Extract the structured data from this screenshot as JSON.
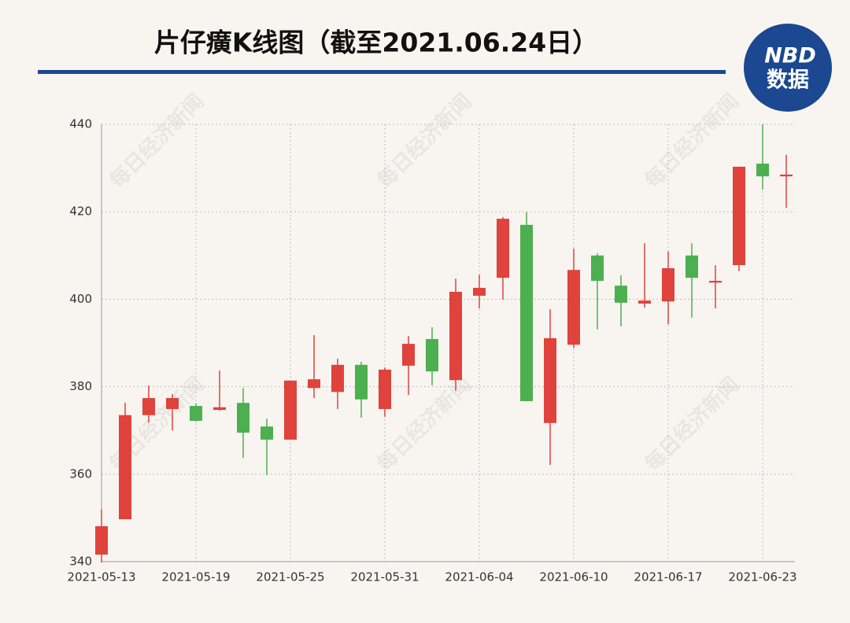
{
  "chart_data": {
    "type": "candlestick",
    "title": "片仔癀K线图（截至2021.06.24日）",
    "logo": {
      "top": "NBD",
      "bottom": "数据"
    },
    "watermark": "每日经济新闻",
    "categories": [
      "2021-05-13",
      null,
      null,
      null,
      "2021-05-19",
      null,
      null,
      null,
      "2021-05-25",
      null,
      null,
      null,
      "2021-05-31",
      null,
      null,
      null,
      "2021-06-04",
      null,
      null,
      null,
      "2021-06-10",
      null,
      null,
      null,
      "2021-06-17",
      null,
      null,
      null,
      "2021-06-23",
      null
    ],
    "series": [
      {
        "up_color": "#e0423c",
        "down_color": "#4caf50",
        "open": [
          341.6,
          349.7,
          373.5,
          374.9,
          375.6,
          374.7,
          376.3,
          370.9,
          367.9,
          379.7,
          378.8,
          385.0,
          374.9,
          384.8,
          390.9,
          381.5,
          400.8,
          404.9,
          417.0,
          371.7,
          389.6,
          410.0,
          403.1,
          399.0,
          399.5,
          410.0,
          403.8,
          407.8,
          431.0,
          428.1
        ],
        "high": [
          351.9,
          376.3,
          380.3,
          378.3,
          376.2,
          383.7,
          379.7,
          372.7,
          381.4,
          391.8,
          386.4,
          385.7,
          384.4,
          391.6,
          393.6,
          404.7,
          405.6,
          418.8,
          419.9,
          397.7,
          411.6,
          410.5,
          405.5,
          412.8,
          410.9,
          412.8,
          407.8,
          430.3,
          440.0,
          433.0
        ],
        "low": [
          339.8,
          349.7,
          371.8,
          370.0,
          372.0,
          374.5,
          363.7,
          359.8,
          367.9,
          377.4,
          374.9,
          372.9,
          373.1,
          378.1,
          380.3,
          379.0,
          397.9,
          399.9,
          376.7,
          362.1,
          388.9,
          393.1,
          393.8,
          398.1,
          394.3,
          395.8,
          397.9,
          406.4,
          425.1,
          420.9
        ],
        "close": [
          348.1,
          373.5,
          377.4,
          377.4,
          372.2,
          375.3,
          369.5,
          367.9,
          381.4,
          381.7,
          385.0,
          377.1,
          383.9,
          389.8,
          383.5,
          401.7,
          402.6,
          418.4,
          376.7,
          391.1,
          406.7,
          404.2,
          399.2,
          399.7,
          407.1,
          404.9,
          404.2,
          430.3,
          428.1,
          428.5
        ]
      }
    ],
    "ylim": [
      340,
      440
    ],
    "yticks": [
      340,
      360,
      380,
      400,
      420,
      440
    ],
    "grid": true
  }
}
